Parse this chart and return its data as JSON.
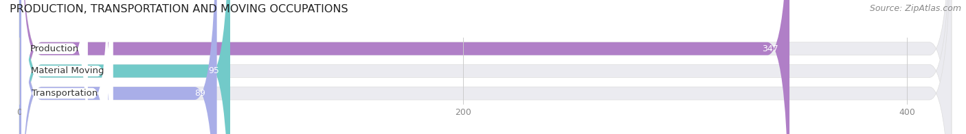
{
  "title": "PRODUCTION, TRANSPORTATION AND MOVING OCCUPATIONS",
  "source": "Source: ZipAtlas.com",
  "categories": [
    "Production",
    "Material Moving",
    "Transportation"
  ],
  "values": [
    347,
    95,
    89
  ],
  "bar_colors": [
    "#b07fc7",
    "#72cac9",
    "#a9aee8"
  ],
  "xlim": [
    0,
    420
  ],
  "xticks": [
    0,
    200,
    400
  ],
  "title_fontsize": 11.5,
  "source_fontsize": 9,
  "label_fontsize": 9.5,
  "value_fontsize": 9,
  "bar_height": 0.58,
  "background_color": "#ffffff",
  "bar_bg_color": "#ebebf0",
  "label_bg_color": "#ffffff",
  "value_color": "#ffffff",
  "tick_color": "#888888"
}
